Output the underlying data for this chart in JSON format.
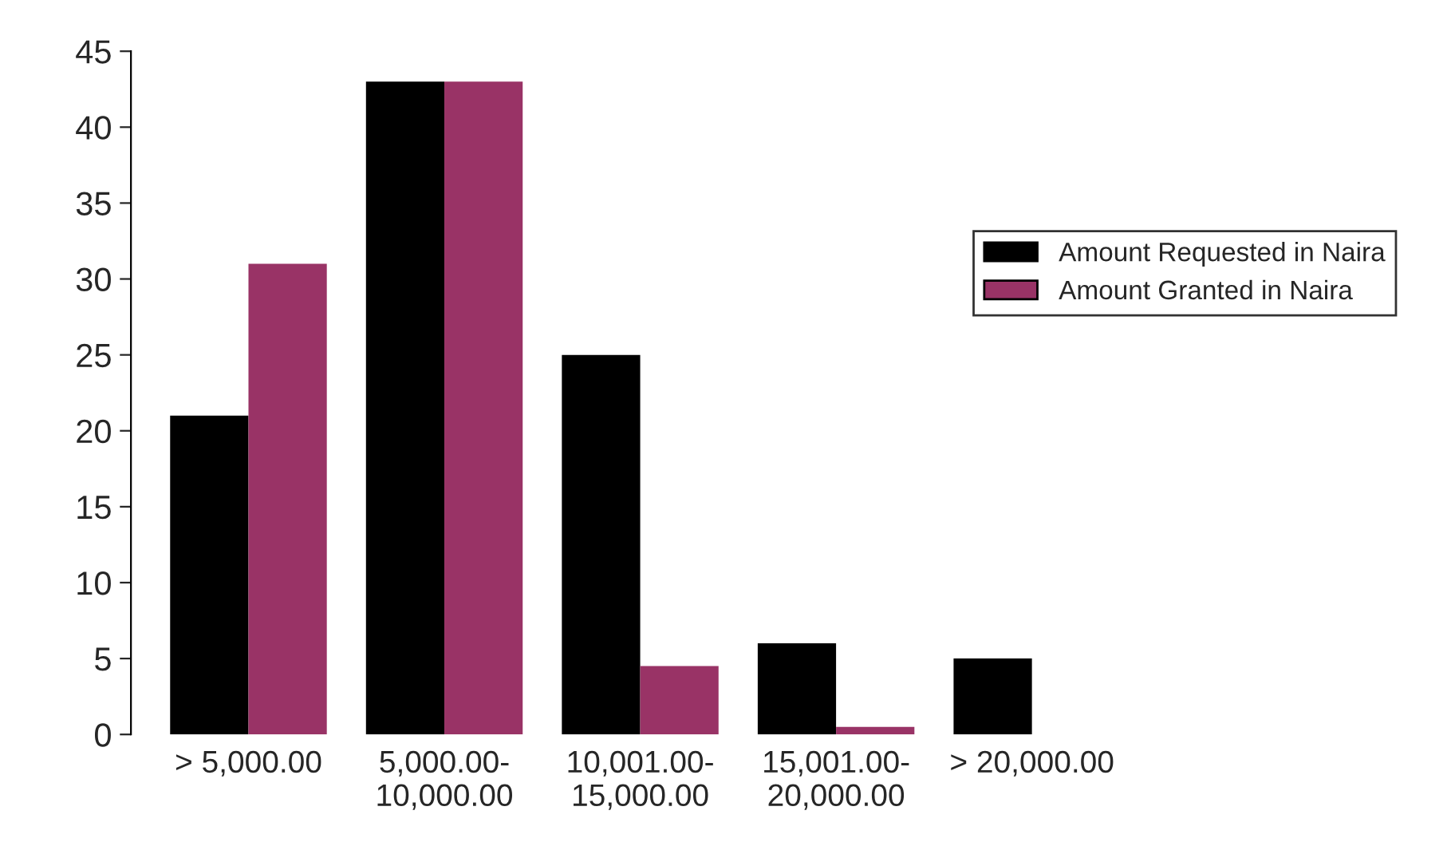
{
  "chart_data": {
    "type": "bar",
    "categories": [
      "> 5,000.00",
      "5,000.00-10,000.00",
      "10,001.00-15,000.00",
      "15,001.00-20,000.00",
      "> 20,000.00"
    ],
    "series": [
      {
        "name": "Amount Requested in Naira",
        "color": "#000000",
        "values": [
          21,
          43,
          25,
          6,
          5
        ]
      },
      {
        "name": "Amount Granted in Naira",
        "color": "#993366",
        "values": [
          31,
          43,
          4.5,
          0.5,
          0
        ]
      }
    ],
    "ylim": [
      0,
      45
    ],
    "yticks": [
      0,
      5,
      10,
      15,
      20,
      25,
      30,
      35,
      40,
      45
    ],
    "grid": false,
    "legend": "right"
  }
}
